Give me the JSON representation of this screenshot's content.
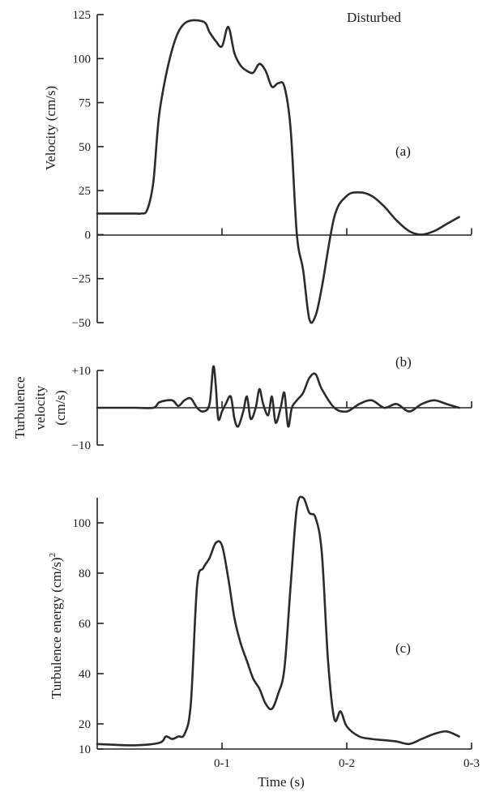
{
  "chart_data": [
    {
      "type": "line",
      "panel_label": "(a)",
      "annotation": "Disturbed",
      "ylabel": "Velocity (cm/s)",
      "xlabel": "",
      "xlim": [
        0,
        0.3
      ],
      "ylim": [
        -50,
        125
      ],
      "ytick_labels": [
        "125",
        "100",
        "75",
        "50",
        "25",
        "0",
        "−25",
        "−50"
      ],
      "series": [
        {
          "x": [
            0.0,
            0.03,
            0.035,
            0.04,
            0.045,
            0.05,
            0.06,
            0.07,
            0.085,
            0.09,
            0.095,
            0.1,
            0.105,
            0.11,
            0.115,
            0.12,
            0.125,
            0.13,
            0.135,
            0.14,
            0.145,
            0.15,
            0.155,
            0.16,
            0.165,
            0.17,
            0.175,
            0.18,
            0.19,
            0.2,
            0.21,
            0.22,
            0.23,
            0.24,
            0.25,
            0.26,
            0.27,
            0.28,
            0.29
          ],
          "y": [
            12,
            12,
            12,
            14,
            30,
            70,
            105,
            120,
            121,
            115,
            110,
            107,
            118,
            103,
            96,
            93,
            92,
            97,
            93,
            84,
            86,
            84,
            60,
            0,
            -20,
            -48,
            -46,
            -30,
            10,
            22,
            24,
            22,
            16,
            8,
            2,
            0,
            2,
            6,
            10
          ]
        }
      ]
    },
    {
      "type": "line",
      "panel_label": "(b)",
      "ylabel": "Turbulence velocity (cm/s)",
      "ylabel_lines": [
        "Turbulence",
        "velocity",
        "(cm/s)"
      ],
      "xlabel": "",
      "xlim": [
        0,
        0.3
      ],
      "ylim": [
        -10,
        10
      ],
      "ytick_labels": [
        "+10",
        "−10"
      ],
      "series": [
        {
          "x": [
            0.0,
            0.03,
            0.045,
            0.05,
            0.06,
            0.065,
            0.07,
            0.075,
            0.08,
            0.085,
            0.09,
            0.093,
            0.095,
            0.097,
            0.1,
            0.103,
            0.107,
            0.11,
            0.113,
            0.117,
            0.12,
            0.123,
            0.127,
            0.13,
            0.133,
            0.137,
            0.14,
            0.143,
            0.147,
            0.15,
            0.153,
            0.156,
            0.16,
            0.165,
            0.17,
            0.175,
            0.18,
            0.19,
            0.2,
            0.21,
            0.22,
            0.23,
            0.24,
            0.25,
            0.26,
            0.27,
            0.28,
            0.29
          ],
          "y": [
            0,
            0,
            0,
            1.5,
            2,
            0.5,
            2,
            2.5,
            0,
            -1,
            1,
            11,
            6,
            -3,
            -1,
            1,
            3,
            -3,
            -5,
            -1,
            3,
            -3,
            0,
            5,
            1,
            -2,
            3,
            -4,
            0,
            4,
            -5,
            0,
            2,
            4,
            8,
            9,
            5,
            0,
            -1,
            1,
            2,
            0,
            1,
            -1,
            1,
            2,
            1,
            0
          ]
        }
      ]
    },
    {
      "type": "line",
      "panel_label": "(c)",
      "ylabel": "Turbulence energy (cm/s)²",
      "ylabel_text": "Turbulence  energy  (cm/s)",
      "ylabel_sup": "2",
      "xlabel": "Time (s)",
      "xtick_labels": [
        "0-1",
        "0-2",
        "0-3"
      ],
      "xlim": [
        0,
        0.3
      ],
      "ylim": [
        10,
        110
      ],
      "ytick_labels": [
        "100",
        "80",
        "60",
        "40",
        "20",
        "10"
      ],
      "series": [
        {
          "x": [
            0.0,
            0.03,
            0.05,
            0.055,
            0.06,
            0.065,
            0.07,
            0.075,
            0.08,
            0.085,
            0.09,
            0.095,
            0.1,
            0.105,
            0.11,
            0.115,
            0.12,
            0.125,
            0.13,
            0.135,
            0.14,
            0.145,
            0.15,
            0.155,
            0.16,
            0.165,
            0.17,
            0.175,
            0.18,
            0.185,
            0.19,
            0.195,
            0.2,
            0.21,
            0.22,
            0.23,
            0.24,
            0.25,
            0.26,
            0.27,
            0.28,
            0.29
          ],
          "y": [
            12,
            11.5,
            12.5,
            15,
            14,
            15,
            16,
            28,
            75,
            82,
            86,
            92,
            91,
            78,
            62,
            52,
            45,
            38,
            34,
            28,
            26,
            32,
            42,
            75,
            106,
            110,
            104,
            102,
            88,
            45,
            22,
            25,
            19,
            15,
            14,
            13.5,
            13,
            12,
            14,
            16,
            17,
            15
          ]
        }
      ]
    }
  ]
}
